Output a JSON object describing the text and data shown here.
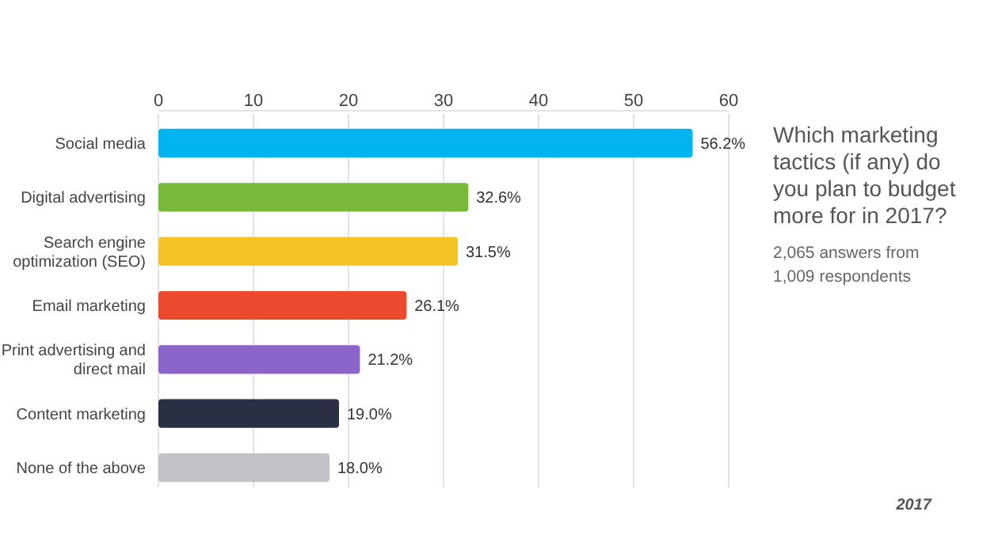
{
  "chart_data": {
    "type": "bar",
    "orientation": "horizontal",
    "title": "Which marketing tactics (if any) do you plan to budget more for in 2017?",
    "subtitle": "2,065 answers from 1,009 respondents",
    "categories": [
      "Social media",
      "Digital advertising",
      "Search engine optimization (SEO)",
      "Email marketing",
      "Print advertising and direct mail",
      "Content marketing",
      "None of the above"
    ],
    "values": [
      56.2,
      32.6,
      31.5,
      26.1,
      21.2,
      19.0,
      18.0
    ],
    "value_labels": [
      "56.2%",
      "32.6%",
      "31.5%",
      "26.1%",
      "21.2%",
      "19.0%",
      "18.0%"
    ],
    "colors": [
      "#00b5ef",
      "#78b93a",
      "#f5c325",
      "#eb4a2f",
      "#8b65c9",
      "#2b2f44",
      "#c1c1c7"
    ],
    "xlim": [
      0,
      60
    ],
    "xticks": [
      0,
      10,
      20,
      30,
      40,
      50,
      60
    ],
    "grid": "x",
    "annotations": [
      "2017"
    ]
  }
}
